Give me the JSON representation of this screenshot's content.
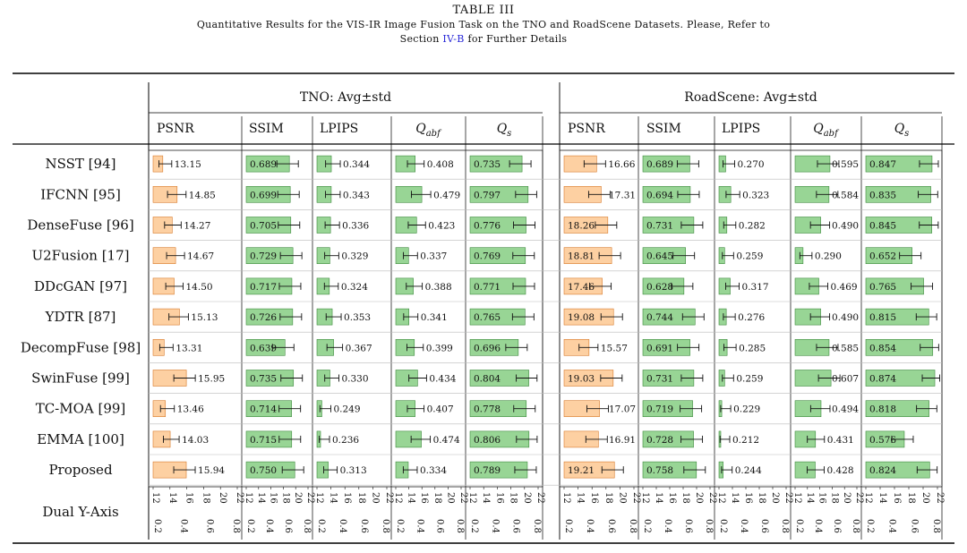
{
  "caption": {
    "table_label": "TABLE III",
    "line1": "Quantitative Results for the VIS-IR Image Fusion Task on the TNO and RoadScene Datasets. Please, Refer to",
    "line2_prefix": "Section",
    "line2_link": "IV-B",
    "line2_suffix": "for Further Details"
  },
  "colors": {
    "psnr_fill": "#fdd0a2",
    "psnr_stroke": "#d77a2b",
    "metric_fill": "#98d595",
    "metric_stroke": "#3f8a3f",
    "rule": "#000000",
    "grid": "#bbbbbb"
  },
  "chart_data": {
    "type": "bar",
    "orientation": "horizontal",
    "groups": [
      {
        "title": "TNO: Avg±std",
        "metrics": [
          "PSNR",
          "SSIM",
          "LPIPS",
          "Q_abf",
          "Q_s"
        ]
      },
      {
        "title": "RoadScene: Avg±std",
        "metrics": [
          "PSNR",
          "SSIM",
          "LPIPS",
          "Q_abf",
          "Q_s"
        ]
      }
    ],
    "metric_headers": [
      "PSNR",
      "SSIM",
      "LPIPS",
      "Q_abf",
      "Q_s"
    ],
    "metric_subscripts": {
      "Q_abf": "abf",
      "Q_s": "s"
    },
    "methods": [
      "NSST [94]",
      "IFCNN [95]",
      "DenseFuse [96]",
      "U2Fusion [17]",
      "DDcGAN [97]",
      "YDTR [87]",
      "DecompFuse [98]",
      "SwinFuse [99]",
      "TC-MOA [99]",
      "EMMA [100]",
      "Proposed"
    ],
    "axis_row_label": "Dual Y-Axis",
    "psnr_range": [
      12,
      22
    ],
    "metric_range": [
      0.2,
      0.9
    ],
    "psnr_ticks": [
      "12",
      "14",
      "16",
      "18",
      "20",
      "22"
    ],
    "metric_ticks": [
      "0.2",
      "0.4",
      "0.6",
      "0.8"
    ],
    "tno": {
      "psnr": [
        13.15,
        14.85,
        14.27,
        14.67,
        14.5,
        15.13,
        13.31,
        15.95,
        13.46,
        14.03,
        15.94
      ],
      "ssim": [
        0.689,
        0.699,
        0.705,
        0.729,
        0.717,
        0.726,
        0.639,
        0.735,
        0.714,
        0.715,
        0.75
      ],
      "lpips": [
        0.344,
        0.343,
        0.336,
        0.329,
        0.324,
        0.353,
        0.367,
        0.33,
        0.249,
        0.236,
        0.313
      ],
      "qabf": [
        0.408,
        0.479,
        0.423,
        0.337,
        0.388,
        0.341,
        0.399,
        0.434,
        0.407,
        0.474,
        0.334
      ],
      "qs": [
        0.735,
        0.797,
        0.776,
        0.769,
        0.771,
        0.765,
        0.696,
        0.804,
        0.778,
        0.806,
        0.789
      ]
    },
    "roadscene": {
      "psnr": [
        16.66,
        17.31,
        18.26,
        18.81,
        17.46,
        19.08,
        15.57,
        19.03,
        17.07,
        16.91,
        19.21
      ],
      "ssim": [
        0.689,
        0.694,
        0.731,
        0.645,
        0.628,
        0.744,
        0.691,
        0.731,
        0.719,
        0.728,
        0.758
      ],
      "lpips": [
        0.27,
        0.323,
        0.282,
        0.259,
        0.317,
        0.276,
        0.285,
        0.259,
        0.229,
        0.212,
        0.244
      ],
      "qabf": [
        0.595,
        0.584,
        0.49,
        0.29,
        0.469,
        0.49,
        0.585,
        0.607,
        0.494,
        0.431,
        0.428
      ],
      "qs": [
        0.847,
        0.835,
        0.845,
        0.652,
        0.765,
        0.815,
        0.854,
        0.874,
        0.818,
        0.576,
        0.824
      ]
    }
  }
}
